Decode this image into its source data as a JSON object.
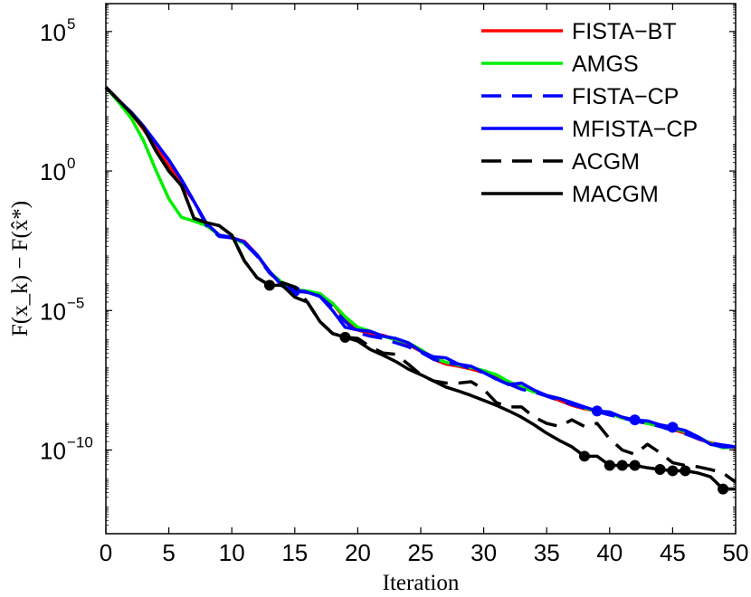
{
  "chart_data": {
    "type": "line",
    "xlabel": "Iteration",
    "ylabel": "F(x_k) − F(x̂*)",
    "x_scale": "linear",
    "y_scale": "log",
    "xlim": [
      0,
      50
    ],
    "ylim": [
      1e-13,
      1000000.0
    ],
    "x_ticks": [
      "0",
      "5",
      "10",
      "15",
      "20",
      "25",
      "30",
      "35",
      "40",
      "45",
      "50"
    ],
    "y_ticks": [
      {
        "base": "10",
        "exp": "5",
        "value": 100000.0
      },
      {
        "base": "10",
        "exp": "0",
        "value": 1
      },
      {
        "base": "10",
        "exp": "−5",
        "value": 1e-05
      },
      {
        "base": "10",
        "exp": "−10",
        "value": 1e-10
      }
    ],
    "grid": false,
    "legend_position": "top-right",
    "series": [
      {
        "name": "FISTA−BT",
        "color": "#ff0000",
        "dash": "solid",
        "x": [
          0,
          1,
          2,
          3,
          4,
          5,
          6,
          7,
          8,
          9,
          10,
          11,
          12,
          13,
          14,
          15,
          16,
          17,
          18,
          19,
          20,
          21,
          22,
          23,
          24,
          25,
          26,
          27,
          28,
          29,
          30,
          31,
          32,
          33,
          34,
          35,
          36,
          37,
          38,
          39,
          40,
          41,
          42,
          43,
          44,
          45,
          46,
          47,
          48,
          49,
          50
        ],
        "y": [
          1000.0,
          350.0,
          120.0,
          30.0,
          7,
          1.5,
          0.35,
          0.08,
          0.013,
          0.005,
          0.004,
          0.003,
          0.001,
          0.00022,
          9e-05,
          5e-05,
          4.5e-05,
          3.5e-05,
          1.8e-05,
          5e-06,
          2e-06,
          1.5e-06,
          1.3e-06,
          9e-07,
          6e-07,
          3.5e-07,
          1.8e-07,
          1.2e-07,
          1e-07,
          8e-08,
          6e-08,
          4e-08,
          2.5e-08,
          1.8e-08,
          1.3e-08,
          9e-09,
          6e-09,
          4e-09,
          3e-09,
          2.5e-09,
          2e-09,
          1.5e-09,
          1.1e-09,
          9e-10,
          7e-10,
          5.5e-10,
          4e-10,
          2.5e-10,
          1.8e-10,
          1.4e-10,
          1.2e-10
        ],
        "markers": []
      },
      {
        "name": "AMGS",
        "color": "#00ee00",
        "dash": "solid",
        "x": [
          0,
          1,
          2,
          3,
          4,
          5,
          6,
          7,
          8,
          9,
          10,
          11,
          12,
          13,
          14,
          15,
          16,
          17,
          18,
          19,
          20,
          21,
          22,
          23,
          24,
          25,
          26,
          27,
          28,
          29,
          30,
          31,
          32,
          33,
          34,
          35,
          36,
          37,
          38,
          39,
          40,
          41,
          42,
          43,
          44,
          45,
          46,
          47,
          48,
          49,
          50
        ],
        "y": [
          1000.0,
          300.0,
          80.0,
          12.0,
          1,
          0.1,
          0.022,
          0.016,
          0.011,
          0.005,
          0.004,
          0.0025,
          0.001,
          0.00024,
          0.0001,
          5.5e-05,
          5e-05,
          4e-05,
          1.8e-05,
          6e-06,
          2.5e-06,
          1.8e-06,
          1.2e-06,
          9e-07,
          7e-07,
          4e-07,
          2e-07,
          1.4e-07,
          1.1e-07,
          9e-08,
          7e-08,
          5e-08,
          2.8e-08,
          1.8e-08,
          1.2e-08,
          9e-09,
          7e-09,
          5e-09,
          3.2e-09,
          2.5e-09,
          2e-09,
          1.4e-09,
          1.1e-09,
          9e-10,
          7e-10,
          6e-10,
          4.5e-10,
          3e-10,
          1.7e-10,
          1.2e-10,
          1.3e-10
        ],
        "markers": []
      },
      {
        "name": "FISTA−CP",
        "color": "#0000ff",
        "dash": "dashed",
        "x": [
          0,
          1,
          2,
          3,
          4,
          5,
          6,
          7,
          8,
          9,
          10,
          11,
          12,
          13,
          14,
          15,
          16,
          17,
          18,
          19,
          20,
          21,
          22,
          23,
          24,
          25,
          26,
          27,
          28,
          29,
          30,
          31,
          32,
          33,
          34,
          35,
          36,
          37,
          38,
          39,
          40,
          41,
          42,
          43,
          44,
          45,
          46,
          47,
          48,
          49,
          50
        ],
        "y": [
          1000.0,
          350.0,
          130.0,
          40.0,
          10.0,
          2.5,
          0.5,
          0.08,
          0.011,
          0.0045,
          0.004,
          0.0026,
          0.0009,
          0.00022,
          9e-05,
          5e-05,
          4.8e-05,
          3.2e-05,
          1.3e-05,
          4e-06,
          1.6e-06,
          1.2e-06,
          1e-06,
          7e-07,
          5e-07,
          3.2e-07,
          1.8e-07,
          1.3e-07,
          1.2e-07,
          8e-08,
          6e-08,
          3.5e-08,
          2.3e-08,
          1.5e-08,
          1.2e-08,
          8.5e-09,
          6e-09,
          4.3e-09,
          3.2e-09,
          2.4e-09,
          1.8e-09,
          1.4e-09,
          1.1e-09,
          9e-10,
          7e-10,
          5e-10,
          3.8e-10,
          2.6e-10,
          1.8e-10,
          1.5e-10,
          1.3e-10
        ],
        "markers": []
      },
      {
        "name": "MFISTA−CP",
        "color": "#0000ff",
        "dash": "solid",
        "x": [
          0,
          1,
          2,
          3,
          4,
          5,
          6,
          7,
          8,
          9,
          10,
          11,
          12,
          13,
          14,
          15,
          16,
          17,
          18,
          19,
          20,
          21,
          22,
          23,
          24,
          25,
          26,
          27,
          28,
          29,
          30,
          31,
          32,
          33,
          34,
          35,
          36,
          37,
          38,
          39,
          40,
          41,
          42,
          43,
          44,
          45,
          46,
          47,
          48,
          49,
          50
        ],
        "y": [
          1000.0,
          350.0,
          130.0,
          40.0,
          10.0,
          2.5,
          0.5,
          0.08,
          0.013,
          0.005,
          0.0042,
          0.0028,
          0.001,
          0.00025,
          7.5e-05,
          5e-05,
          4.5e-05,
          3.2e-05,
          1e-05,
          2.5e-06,
          2e-06,
          1.8e-06,
          1.2e-06,
          1e-06,
          7e-07,
          3.5e-07,
          2.2e-07,
          2e-07,
          1.2e-07,
          1e-07,
          6e-08,
          3.5e-08,
          2.2e-08,
          2.5e-08,
          1.4e-08,
          9e-09,
          7e-09,
          5e-09,
          3.5e-09,
          2.5e-09,
          2.3e-09,
          1.5e-09,
          1.2e-09,
          1.1e-09,
          8e-10,
          6.5e-10,
          5e-10,
          3e-10,
          1.6e-10,
          1.3e-10,
          1.3e-10
        ],
        "markers": [
          15,
          39,
          42,
          45
        ]
      },
      {
        "name": "ACGM",
        "color": "#000000",
        "dash": "dashed",
        "x": [
          0,
          1,
          2,
          3,
          4,
          5,
          6,
          7,
          8,
          9,
          10,
          11,
          12,
          13,
          14,
          15,
          16,
          17,
          18,
          19,
          20,
          21,
          22,
          23,
          24,
          25,
          26,
          27,
          28,
          29,
          30,
          31,
          32,
          33,
          34,
          35,
          36,
          37,
          38,
          39,
          40,
          41,
          42,
          43,
          44,
          45,
          46,
          47,
          48,
          49,
          50
        ],
        "y": [
          1000.0,
          350.0,
          120.0,
          35.0,
          5,
          1,
          0.3,
          0.02,
          0.014,
          0.011,
          0.005,
          0.0006,
          0.00015,
          8e-05,
          0.0001,
          7e-05,
          2e-05,
          4e-06,
          1.5e-06,
          1.1e-06,
          1e-06,
          5e-07,
          3e-07,
          2.7e-07,
          1.2e-07,
          5e-08,
          3e-08,
          2.5e-08,
          2.5e-08,
          2.8e-08,
          1.5e-08,
          5e-09,
          3.5e-09,
          3.5e-09,
          1.5e-09,
          9e-10,
          7e-10,
          1.2e-09,
          7e-10,
          9e-10,
          2.5e-10,
          1e-10,
          7e-11,
          1.6e-10,
          8e-11,
          3.5e-11,
          2.8e-11,
          2.5e-11,
          2e-11,
          1.5e-11,
          7e-12
        ],
        "markers": []
      },
      {
        "name": "MACGM",
        "color": "#000000",
        "dash": "solid",
        "x": [
          0,
          1,
          2,
          3,
          4,
          5,
          6,
          7,
          8,
          9,
          10,
          11,
          12,
          13,
          14,
          15,
          16,
          17,
          18,
          19,
          20,
          21,
          22,
          23,
          24,
          25,
          26,
          27,
          28,
          29,
          30,
          31,
          32,
          33,
          34,
          35,
          36,
          37,
          38,
          39,
          40,
          41,
          42,
          43,
          44,
          45,
          46,
          47,
          48,
          49,
          50
        ],
        "y": [
          1000.0,
          350.0,
          120.0,
          35.0,
          5,
          1,
          0.3,
          0.02,
          0.014,
          0.011,
          0.005,
          0.0006,
          0.00015,
          8e-05,
          8e-05,
          3e-05,
          2e-05,
          4e-06,
          1.5e-06,
          1.1e-06,
          8e-07,
          4e-07,
          2.5e-07,
          1.5e-07,
          8e-08,
          5e-08,
          3e-08,
          1.8e-08,
          1.3e-08,
          9e-09,
          6e-09,
          4e-09,
          2.5e-09,
          1.5e-09,
          8e-10,
          4e-10,
          2.2e-10,
          1.3e-10,
          6e-11,
          6e-11,
          2.8e-11,
          2.8e-11,
          2.8e-11,
          2.3e-11,
          2e-11,
          1.8e-11,
          1.8e-11,
          1.5e-11,
          1.1e-11,
          4e-12,
          4e-12
        ],
        "markers": [
          13,
          19,
          38,
          40,
          41,
          42,
          44,
          45,
          46,
          49
        ]
      }
    ]
  }
}
